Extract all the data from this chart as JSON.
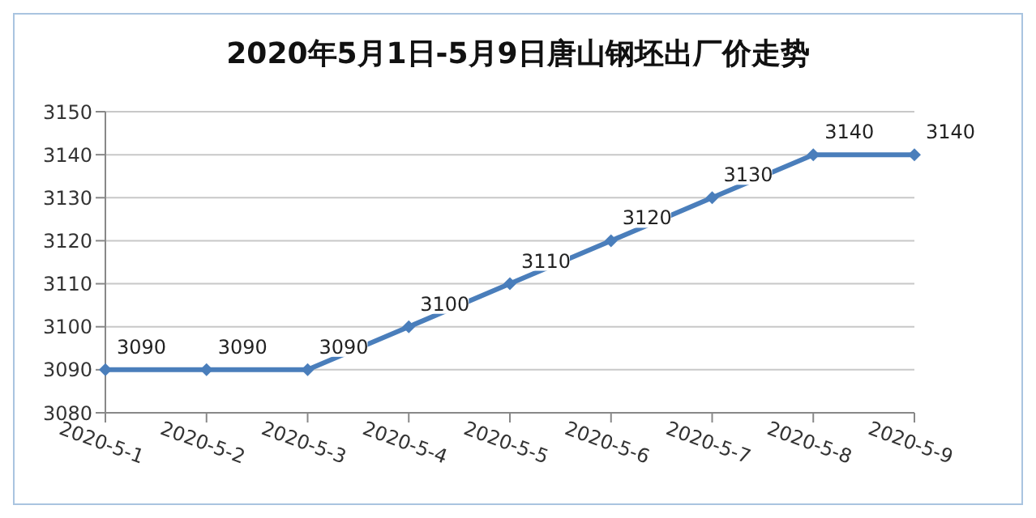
{
  "chart_data": {
    "type": "line",
    "title": "2020年5月1日-5月9日唐山钢坯出厂价走势",
    "categories": [
      "2020-5-1",
      "2020-5-2",
      "2020-5-3",
      "2020-5-4",
      "2020-5-5",
      "2020-5-6",
      "2020-5-7",
      "2020-5-8",
      "2020-5-9"
    ],
    "series": [
      {
        "color": "#4a7ebb",
        "values": [
          3090,
          3090,
          3090,
          3100,
          3110,
          3120,
          3130,
          3140,
          3140
        ]
      }
    ],
    "ylim": [
      3080,
      3150
    ],
    "yticks": [
      3080,
      3090,
      3100,
      3110,
      3120,
      3130,
      3140,
      3150
    ],
    "grid": "y",
    "legend": false,
    "marker": "diamond",
    "line_style": "solid",
    "data_labels": true
  }
}
